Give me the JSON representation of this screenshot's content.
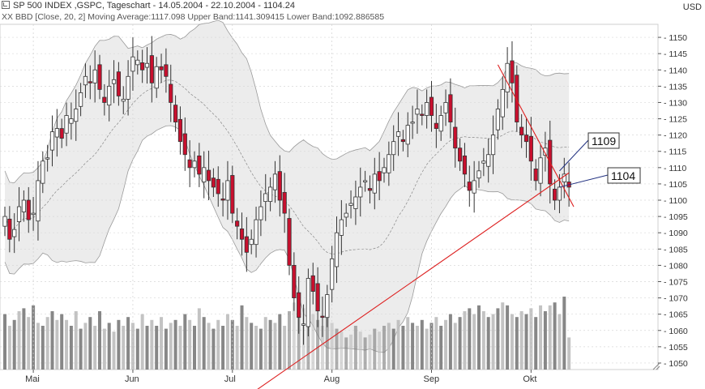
{
  "header": {
    "title": "SP 500 INDEX ,GSPC, Tageschart - 14.05.2004 - 22.10.2004 - 1104.24",
    "indicator": "XX BBD [Close, 20, 2] Moving Average:1117.098 Upper Band:1141.309415 Lower Band:1092.886585",
    "currency": "USD"
  },
  "chart_data": {
    "type": "candlestick",
    "title": "SP 500 INDEX ,GSPC, Tageschart - 14.05.2004 - 22.10.2004 - 1104.24",
    "ylim": [
      1048,
      1154
    ],
    "yticks": [
      1050,
      1055,
      1060,
      1065,
      1070,
      1075,
      1080,
      1085,
      1090,
      1095,
      1100,
      1105,
      1110,
      1115,
      1120,
      1125,
      1130,
      1135,
      1140,
      1145,
      1150
    ],
    "grid": true,
    "axis_side": "right",
    "months": [
      {
        "label": "Mai",
        "index": 6
      },
      {
        "label": "Jun",
        "index": 27
      },
      {
        "label": "Jul",
        "index": 48
      },
      {
        "label": "Aug",
        "index": 69
      },
      {
        "label": "Sep",
        "index": 90
      },
      {
        "label": "Okt",
        "index": 111
      }
    ],
    "closes": [
      1095,
      1088,
      1091,
      1098,
      1100,
      1094,
      1096,
      1106,
      1112,
      1113,
      1121,
      1122,
      1119,
      1126,
      1125,
      1128,
      1133,
      1138,
      1136,
      1140,
      1134,
      1130,
      1135,
      1137,
      1132,
      1131,
      1138,
      1144,
      1143,
      1140,
      1142,
      1136,
      1141,
      1140,
      1138,
      1130,
      1124,
      1118,
      1114,
      1110,
      1112,
      1108,
      1110,
      1106,
      1104,
      1102,
      1100,
      1106,
      1096,
      1092,
      1088,
      1084,
      1088,
      1094,
      1098,
      1102,
      1104,
      1108,
      1100,
      1096,
      1080,
      1070,
      1064,
      1062,
      1076,
      1072,
      1066,
      1064,
      1071,
      1082,
      1090,
      1094,
      1096,
      1099,
      1101,
      1104,
      1106,
      1103,
      1108,
      1106,
      1110,
      1114,
      1118,
      1121,
      1118,
      1123,
      1124,
      1128,
      1126,
      1130,
      1126,
      1122,
      1126,
      1130,
      1124,
      1116,
      1112,
      1108,
      1103,
      1106,
      1109,
      1112,
      1114,
      1120,
      1128,
      1134,
      1142,
      1136,
      1124,
      1120,
      1118,
      1112,
      1106,
      1113,
      1116,
      1105,
      1100,
      1104,
      1108,
      1104
    ],
    "bands": {
      "upper_label": "Upper Band",
      "lower_label": "Lower Band",
      "ma_label": "Moving Average",
      "upper_last": 1141.309415,
      "lower_last": 1092.886585,
      "ma_last": 1117.098
    },
    "volume": [
      38,
      30,
      34,
      40,
      42,
      36,
      44,
      32,
      30,
      36,
      40,
      34,
      38,
      34,
      30,
      40,
      28,
      32,
      36,
      30,
      40,
      28,
      32,
      26,
      34,
      30,
      36,
      32,
      28,
      38,
      30,
      34,
      30,
      36,
      28,
      32,
      34,
      30,
      38,
      34,
      30,
      42,
      36,
      32,
      28,
      34,
      30,
      38,
      34,
      30,
      44,
      36,
      32,
      30,
      28,
      36,
      34,
      32,
      38,
      30,
      40,
      46,
      48,
      42,
      44,
      38,
      34,
      30,
      36,
      32,
      28,
      26,
      22,
      24,
      30,
      26,
      22,
      24,
      28,
      26,
      30,
      32,
      28,
      34,
      30,
      36,
      32,
      30,
      34,
      28,
      32,
      36,
      30,
      34,
      38,
      32,
      36,
      40,
      42,
      38,
      44,
      40,
      36,
      38,
      42,
      46,
      44,
      38,
      36,
      40,
      38,
      42,
      36,
      44,
      40,
      44,
      46,
      38,
      50,
      22
    ],
    "trendlines": [
      {
        "name": "support",
        "from": [
          50,
          1038.6
        ],
        "to": [
          119,
          1108.4
        ],
        "color": "#dd2020"
      },
      {
        "name": "resistance",
        "from": [
          104,
          1141.6
        ],
        "to": [
          120,
          1098.0
        ],
        "color": "#dd2020"
      }
    ],
    "labels": [
      {
        "text": "1109",
        "value": 1109,
        "index": 117
      },
      {
        "text": "1104",
        "value": 1104,
        "index": 117
      }
    ],
    "colors": {
      "up": "#ffffff",
      "down": "#c8102e",
      "band_fill": "#ececec",
      "band_line": "#9a9a9a",
      "trend": "#dd2020",
      "volume_dark": "#7a7a7a",
      "volume_light": "#bdbdbd"
    }
  }
}
